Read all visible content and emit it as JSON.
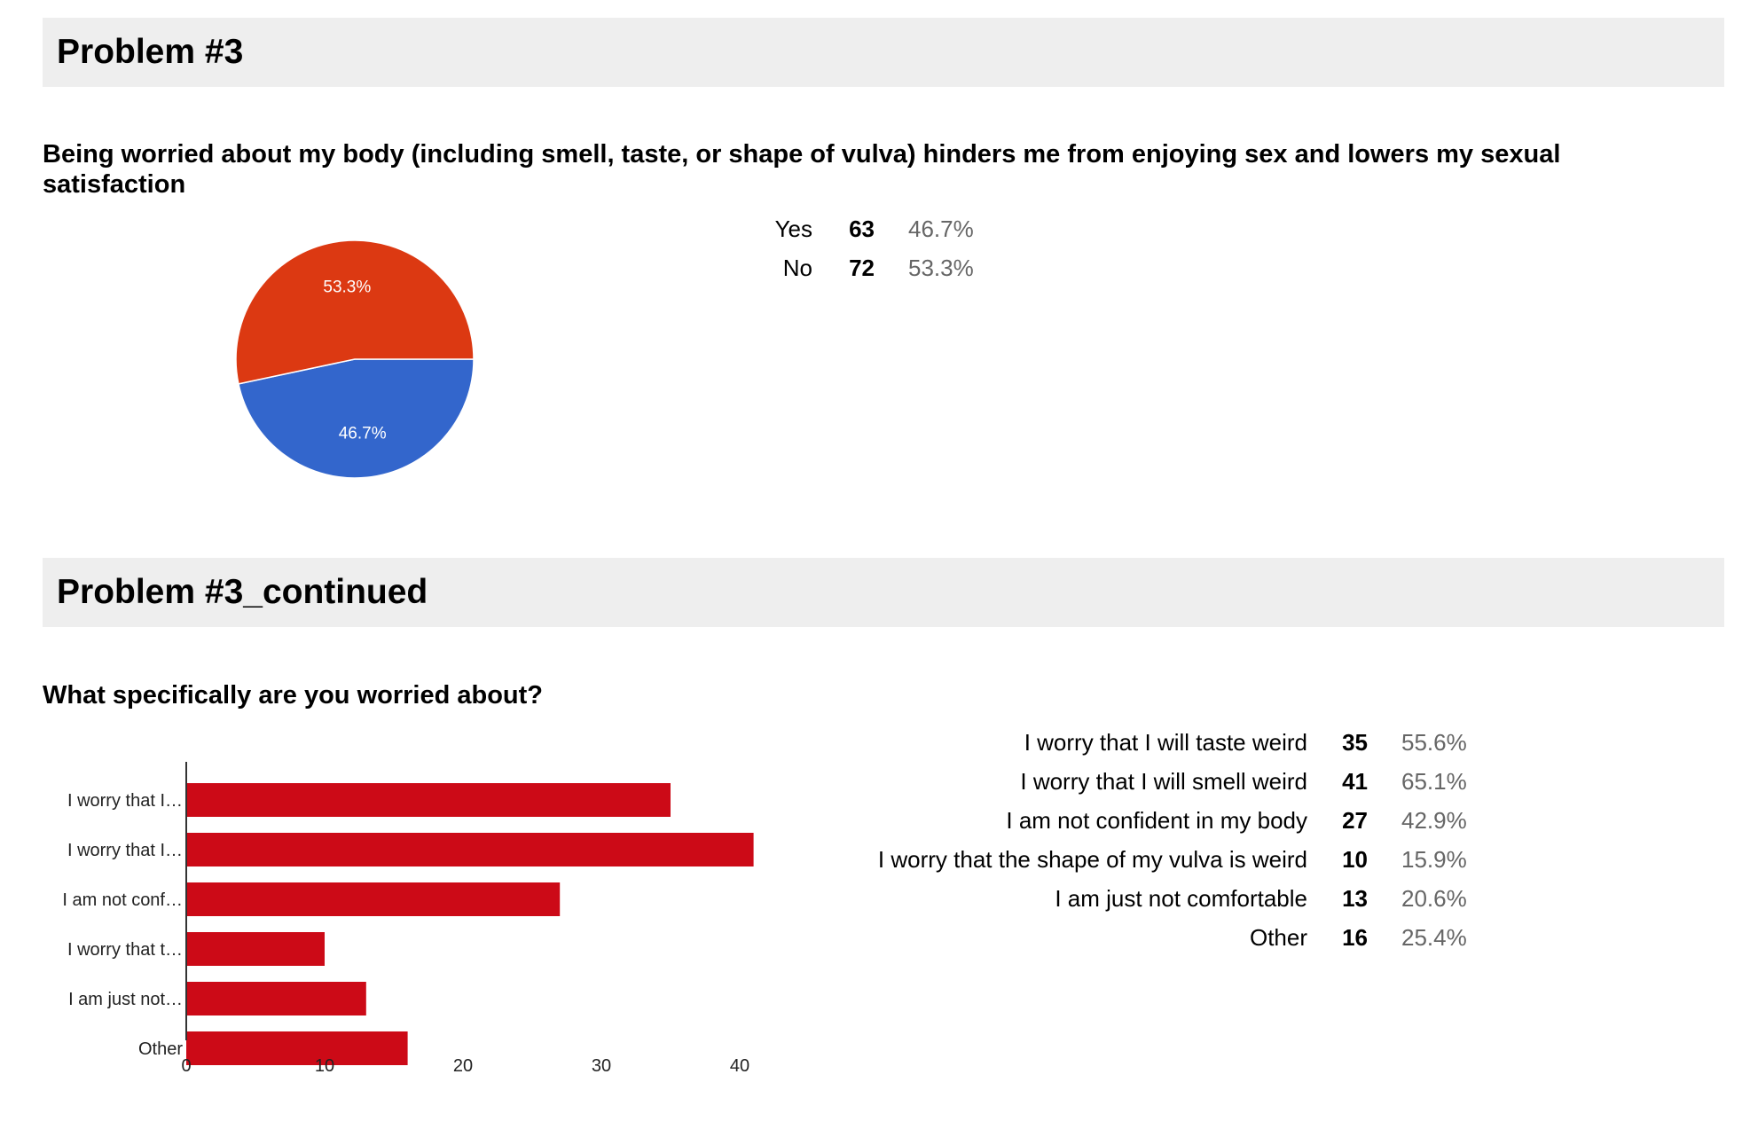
{
  "sections": [
    {
      "title": "Problem #3",
      "question": "Being worried about my body (including smell, taste, or shape of vulva) hinders me from enjoying sex and lowers my sexual satisfaction",
      "rows": [
        {
          "label": "Yes",
          "count": "63",
          "percent": "46.7%"
        },
        {
          "label": "No",
          "count": "72",
          "percent": "53.3%"
        }
      ]
    },
    {
      "title": "Problem #3_continued",
      "question": "What specifically are you worried about?",
      "rows": [
        {
          "label": "I worry that I will taste weird",
          "count": "35",
          "percent": "55.6%"
        },
        {
          "label": "I worry that I will smell weird",
          "count": "41",
          "percent": "65.1%"
        },
        {
          "label": "I am not confident in my body",
          "count": "27",
          "percent": "42.9%"
        },
        {
          "label": "I worry that the shape of my vulva is weird",
          "count": "10",
          "percent": "15.9%"
        },
        {
          "label": "I am just not comfortable",
          "count": "13",
          "percent": "20.6%"
        },
        {
          "label": "Other",
          "count": "16",
          "percent": "25.4%"
        }
      ]
    }
  ],
  "chart_data": [
    {
      "type": "pie",
      "categories": [
        "Yes",
        "No"
      ],
      "values": [
        63,
        72
      ],
      "slice_labels": [
        "46.7%",
        "53.3%"
      ],
      "colors": [
        "#3366cc",
        "#dc3912"
      ],
      "title": "",
      "legend": "none"
    },
    {
      "type": "bar",
      "orientation": "horizontal",
      "categories": [
        "I worry that I…",
        "I worry that I…",
        "I am not conf…",
        "I worry that t…",
        "I am just not…",
        "Other"
      ],
      "values": [
        35,
        41,
        27,
        10,
        13,
        16
      ],
      "xlim": [
        0,
        41
      ],
      "x_ticks": [
        0,
        10,
        20,
        30,
        40
      ],
      "color": "#cc0a17",
      "title": "",
      "xlabel": "",
      "ylabel": "",
      "legend": "none",
      "grid": false
    }
  ]
}
